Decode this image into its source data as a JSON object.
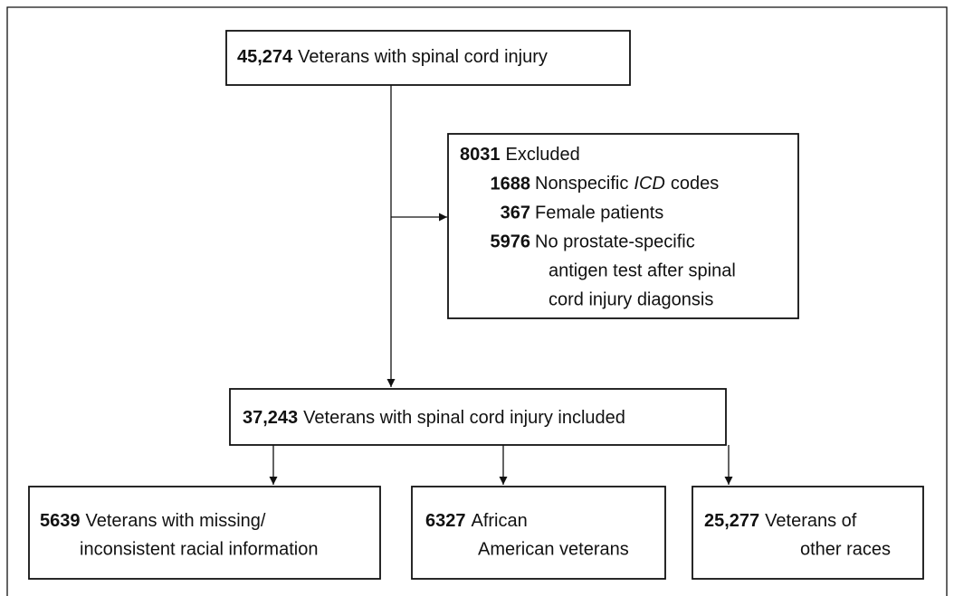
{
  "nodes": [
    {
      "count": "45,274",
      "label": [
        "Veterans with spinal cord injury"
      ]
    },
    {
      "count": "37,243",
      "label": [
        "Veterans with spinal cord injury included"
      ]
    },
    {
      "count": "5639",
      "label": [
        "Veterans with missing/",
        "inconsistent racial information"
      ]
    },
    {
      "count": "6327",
      "label": [
        "African",
        "American veterans"
      ]
    },
    {
      "count": "25,277",
      "label": [
        "Veterans of",
        "other races"
      ]
    }
  ],
  "exclusion": {
    "count": "8031",
    "label": "Excluded",
    "items": [
      {
        "count": "1688",
        "label": {
          "before": "Nonspecific",
          "italic": "ICD",
          "after": "codes"
        }
      },
      {
        "count": "367",
        "label": "Female patients"
      },
      {
        "count": "5976",
        "label": [
          "No prostate-specific",
          "antigen test after spinal",
          "cord injury diagonsis"
        ]
      }
    ]
  }
}
